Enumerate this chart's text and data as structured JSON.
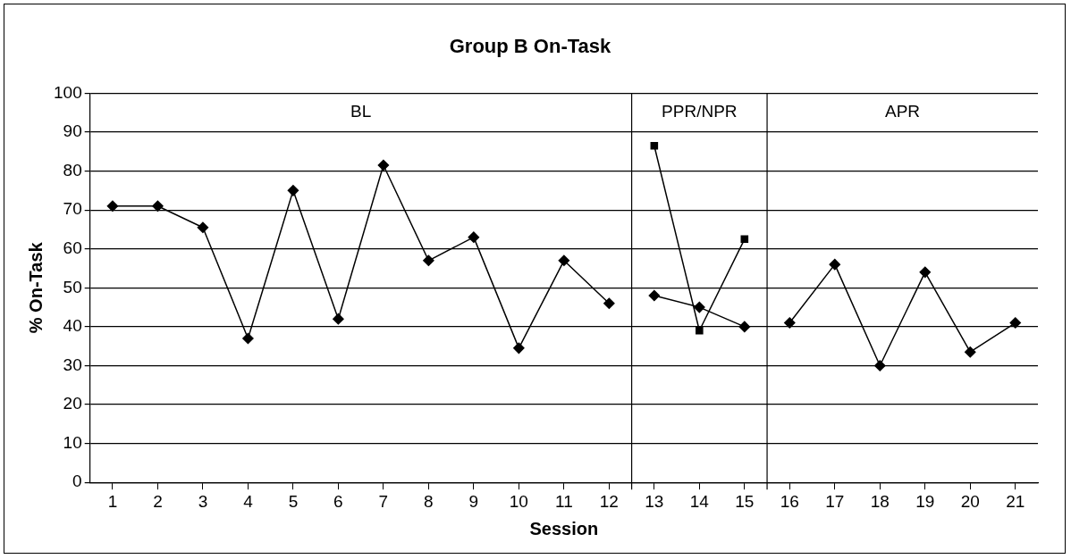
{
  "chart_data": {
    "type": "line",
    "title": "Group B On-Task",
    "xlabel": "Session",
    "ylabel": "% On-Task",
    "xlim": [
      0.5,
      21.5
    ],
    "xticks": [
      1,
      2,
      3,
      4,
      5,
      6,
      7,
      8,
      9,
      10,
      11,
      12,
      13,
      14,
      15,
      16,
      17,
      18,
      19,
      20,
      21
    ],
    "ylim": [
      0,
      100
    ],
    "yticks": [
      0,
      10,
      20,
      30,
      40,
      50,
      60,
      70,
      80,
      90,
      100
    ],
    "grid": "y",
    "legend": false,
    "marker": "diamond",
    "line_style": "solid",
    "series": [
      {
        "color": "#000000",
        "x": [
          1,
          2,
          3,
          4,
          5,
          6,
          7,
          8,
          9,
          10,
          11,
          12
        ],
        "values": [
          71,
          71,
          65.5,
          37,
          75,
          42,
          81.5,
          57,
          63,
          34.5,
          57,
          46
        ]
      },
      {
        "color": "#000000",
        "x": [
          13,
          14,
          15
        ],
        "values": [
          48,
          45,
          40
        ]
      },
      {
        "color": "#000000",
        "marker": "square",
        "x": [
          13,
          14,
          15
        ],
        "values": [
          86.5,
          39,
          62.5
        ]
      },
      {
        "color": "#000000",
        "x": [
          16,
          17,
          18,
          19,
          20,
          21
        ],
        "values": [
          41,
          56,
          30,
          54,
          33.5,
          41
        ]
      }
    ],
    "ref_lines": [
      {
        "axis": "x",
        "value": 12.5,
        "color": "#000000"
      },
      {
        "axis": "x",
        "value": 15.5,
        "color": "#000000"
      }
    ],
    "annotations": [
      "BL",
      "PPR/NPR",
      "APR"
    ]
  }
}
